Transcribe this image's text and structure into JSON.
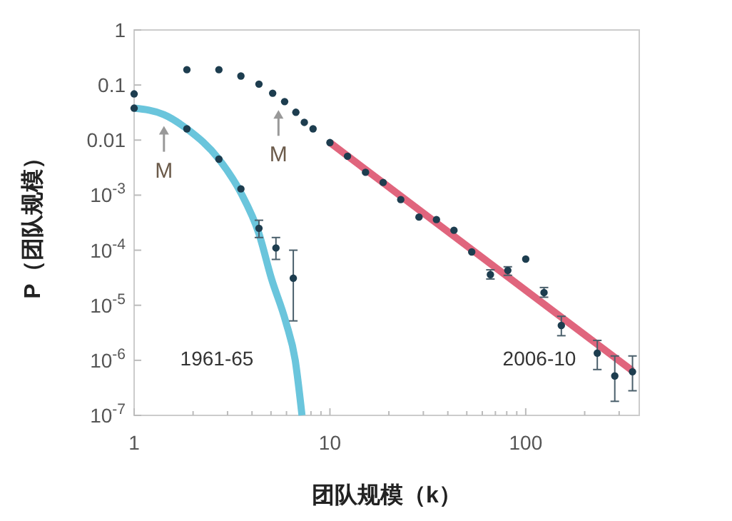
{
  "chart_data": {
    "type": "scatter",
    "xlabel": "团队规模（k）",
    "ylabel": "P（团队规模）",
    "log": "xy",
    "grid": false,
    "marker": "circle",
    "xlim": [
      1,
      380
    ],
    "ylim": [
      1e-07,
      1
    ],
    "xticks": [
      1,
      {
        "value": 2,
        "label": null
      },
      {
        "value": 3,
        "label": null
      },
      {
        "value": 4,
        "label": null
      },
      {
        "value": 5,
        "label": null
      },
      {
        "value": 6,
        "label": null
      },
      {
        "value": 7,
        "label": null
      },
      {
        "value": 8,
        "label": null
      },
      {
        "value": 9,
        "label": null
      },
      10,
      {
        "value": 20,
        "label": null
      },
      {
        "value": 30,
        "label": null
      },
      {
        "value": 40,
        "label": null
      },
      {
        "value": 50,
        "label": null
      },
      {
        "value": 60,
        "label": null
      },
      {
        "value": 70,
        "label": null
      },
      {
        "value": 80,
        "label": null
      },
      {
        "value": 90,
        "label": null
      },
      100,
      {
        "value": 200,
        "label": null
      },
      {
        "value": 300,
        "label": null
      }
    ],
    "yticks": [
      {
        "value": 1e-07,
        "label": "10$^{-7}$"
      },
      {
        "value": 1e-06,
        "label": "10$^{-6}$"
      },
      {
        "value": 1e-05,
        "label": "10$^{-5}$"
      },
      {
        "value": 0.0001,
        "label": "10$^{-4}$"
      },
      {
        "value": 0.001,
        "label": "10$^{-3}$"
      },
      0.01,
      0.1,
      1
    ],
    "series": [
      {
        "type": "line",
        "marker": "none",
        "color": "#6ac5dc",
        "x": [
          1,
          1.42,
          1.86,
          2.71,
          3.51,
          4.34,
          5.02,
          5.95,
          6.65,
          7.2
        ],
        "values": [
          0.038,
          0.029,
          0.016,
          0.0045,
          0.0011,
          0.0002,
          3.1e-05,
          5e-06,
          1e-06,
          1e-07
        ]
      },
      {
        "type": "line",
        "marker": "none",
        "color": "#e0657d",
        "x": [
          10,
          350
        ],
        "values": [
          0.009,
          6.5e-07
        ]
      },
      {
        "color": "#1d3d4f",
        "x": [
          1,
          1.86,
          2.71,
          3.51,
          4.34,
          5.1,
          5.87,
          6.7,
          7.4,
          8.2
        ],
        "values": [
          0.069,
          0.19,
          0.19,
          0.146,
          0.104,
          0.071,
          0.05,
          0.032,
          0.021,
          0.016
        ]
      },
      {
        "color": "#1d3d4f",
        "x": [
          1,
          1.86,
          2.71,
          3.51,
          4.34,
          5.3,
          6.5
        ],
        "values": [
          0.038,
          0.016,
          0.0045,
          0.0013,
          0.00025,
          0.00011,
          3.1e-05
        ],
        "errors": [
          null,
          null,
          null,
          null,
          [
            0.00017,
            0.00035
          ],
          [
            6.8e-05,
            0.00017
          ],
          [
            5.2e-06,
            0.0001
          ]
        ]
      },
      {
        "color": "#1d3d4f",
        "x": [
          10,
          12.3,
          15.2,
          18.7,
          23,
          28.5,
          35,
          43,
          53,
          66,
          81,
          100,
          124,
          152,
          232,
          285,
          351
        ],
        "values": [
          0.009,
          0.0051,
          0.0026,
          0.0017,
          0.00083,
          0.0004,
          0.00036,
          0.00023,
          9.3e-05,
          3.6e-05,
          4.3e-05,
          6.9e-05,
          1.7e-05,
          4.3e-06,
          1.35e-06,
          5.2e-07,
          6.2e-07
        ],
        "errors": [
          null,
          null,
          null,
          null,
          null,
          null,
          null,
          null,
          null,
          [
            3e-05,
            4.4e-05
          ],
          [
            3.5e-05,
            5e-05
          ],
          null,
          [
            1.4e-05,
            2.1e-05
          ],
          [
            2.8e-06,
            6.3e-06
          ],
          [
            6.8e-07,
            2.3e-06
          ],
          [
            1.8e-07,
            1.2e-06
          ],
          [
            2.8e-07,
            1.2e-06
          ]
        ]
      }
    ],
    "annotations": [
      {
        "text": "M",
        "x": 1.42,
        "y": 0.018
      },
      {
        "text": "M",
        "x": 5.46,
        "y": 0.035
      },
      "1961-65",
      "2006-10"
    ]
  }
}
